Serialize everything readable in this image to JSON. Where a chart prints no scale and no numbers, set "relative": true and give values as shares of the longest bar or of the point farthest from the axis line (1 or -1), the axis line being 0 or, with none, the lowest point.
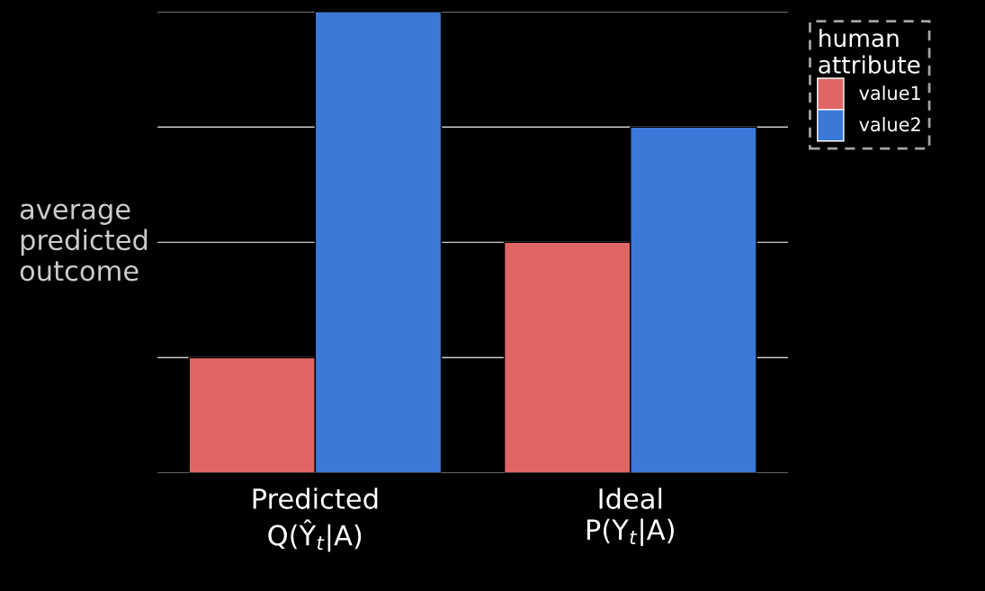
{
  "chart_data": {
    "type": "bar",
    "relative": true,
    "ylabel": "average\npredicted\noutcome",
    "legend_title": "human\nattribute",
    "legend": "right",
    "grid": "y",
    "categories": [
      "Predicted\nQ(Ŷ$_{t}$|A)",
      "Ideal\nP(Y$_{t}$|A)"
    ],
    "series": [
      {
        "name": "value1",
        "color": "#e06666",
        "values": [
          0.25,
          0.5
        ]
      },
      {
        "name": "value2",
        "color": "#3c78d8",
        "values": [
          1,
          0.75
        ]
      }
    ]
  }
}
